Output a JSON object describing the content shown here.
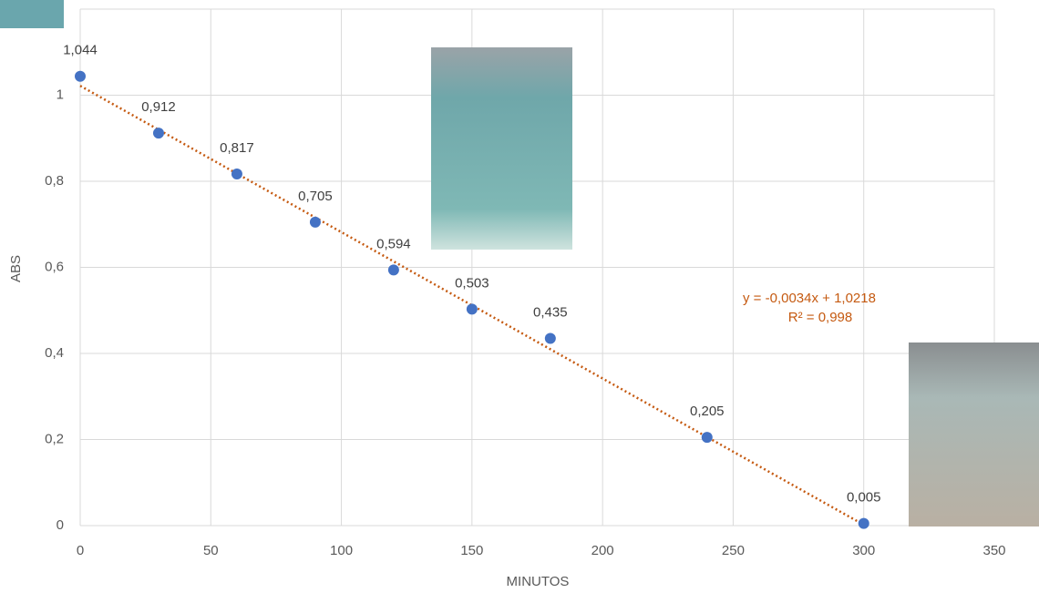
{
  "chart_data": {
    "type": "scatter",
    "x_label": "MINUTOS",
    "y_label": "ABS",
    "x": [
      0,
      30,
      60,
      90,
      120,
      150,
      180,
      240,
      300
    ],
    "values": [
      1.044,
      0.912,
      0.817,
      0.705,
      0.594,
      0.503,
      0.435,
      0.205,
      0.005
    ],
    "value_labels": [
      "1,044",
      "0,912",
      "0,817",
      "0,705",
      "0,594",
      "0,503",
      "0,435",
      "0,205",
      "0,005"
    ],
    "color": "#4472c4",
    "xlim": [
      0,
      350
    ],
    "xticks": [
      0,
      50,
      100,
      150,
      200,
      250,
      300,
      350
    ],
    "ylim": [
      0,
      1.2
    ],
    "yticks": [
      0,
      {
        "value": 0.2,
        "label": "0,2"
      },
      {
        "value": 0.4,
        "label": "0,4"
      },
      {
        "value": 0.6,
        "label": "0,6"
      },
      {
        "value": 0.8,
        "label": "0,8"
      },
      1
    ],
    "grid": true,
    "trendline": {
      "equation": "y = -0,0034x + 1,0218",
      "r2": "R² = 0,998",
      "slope": -0.0034,
      "intercept": 1.0218,
      "color": "#c55a11"
    }
  }
}
